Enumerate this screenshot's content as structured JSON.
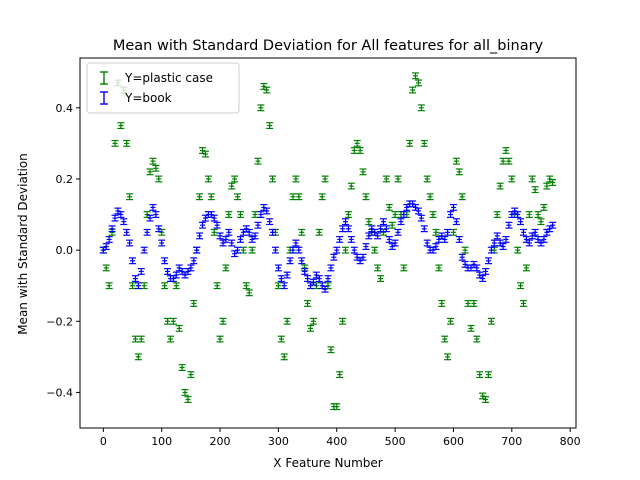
{
  "chart_data": {
    "type": "scatter",
    "title": "Mean with Standard Deviation for All features for all_binary",
    "xlabel": "X Feature Number",
    "ylabel": "Mean with Standard Deviation",
    "xlim": [
      -40,
      810
    ],
    "ylim": [
      -0.5,
      0.54
    ],
    "xticks": [
      0,
      100,
      200,
      300,
      400,
      500,
      600,
      700,
      800
    ],
    "yticks": [
      -0.4,
      -0.2,
      0.0,
      0.2,
      0.4
    ],
    "ytick_labels": [
      "−0.4",
      "−0.2",
      "0.0",
      "0.2",
      "0.4"
    ],
    "grid": false,
    "legend": "top-left",
    "error_bar_std": 0.008,
    "series": [
      {
        "name": "Y=plastic case",
        "color": "#008000",
        "points": [
          [
            0,
            0
          ],
          [
            5,
            -0.05
          ],
          [
            10,
            -0.1
          ],
          [
            15,
            0.05
          ],
          [
            20,
            0.3
          ],
          [
            25,
            0.47
          ],
          [
            30,
            0.35
          ],
          [
            35,
            0.45
          ],
          [
            40,
            0.3
          ],
          [
            45,
            0.15
          ],
          [
            50,
            -0.1
          ],
          [
            55,
            -0.25
          ],
          [
            60,
            -0.3
          ],
          [
            65,
            -0.25
          ],
          [
            70,
            -0.1
          ],
          [
            75,
            0.1
          ],
          [
            80,
            0.22
          ],
          [
            85,
            0.25
          ],
          [
            90,
            0.23
          ],
          [
            95,
            0.2
          ],
          [
            100,
            0.05
          ],
          [
            105,
            -0.1
          ],
          [
            110,
            -0.2
          ],
          [
            115,
            -0.25
          ],
          [
            120,
            -0.2
          ],
          [
            125,
            -0.1
          ],
          [
            130,
            -0.22
          ],
          [
            135,
            -0.33
          ],
          [
            140,
            -0.4
          ],
          [
            145,
            -0.42
          ],
          [
            150,
            -0.35
          ],
          [
            155,
            -0.15
          ],
          [
            160,
            0.0
          ],
          [
            165,
            0.15
          ],
          [
            170,
            0.28
          ],
          [
            175,
            0.27
          ],
          [
            180,
            0.2
          ],
          [
            185,
            0.15
          ],
          [
            190,
            0.05
          ],
          [
            195,
            -0.1
          ],
          [
            200,
            -0.25
          ],
          [
            205,
            -0.2
          ],
          [
            210,
            -0.05
          ],
          [
            215,
            0.1
          ],
          [
            220,
            0.18
          ],
          [
            225,
            0.2
          ],
          [
            230,
            0.15
          ],
          [
            235,
            0.1
          ],
          [
            240,
            0.0
          ],
          [
            245,
            -0.1
          ],
          [
            250,
            -0.12
          ],
          [
            255,
            0.0
          ],
          [
            260,
            0.1
          ],
          [
            265,
            0.25
          ],
          [
            270,
            0.4
          ],
          [
            275,
            0.46
          ],
          [
            280,
            0.45
          ],
          [
            285,
            0.35
          ],
          [
            290,
            0.2
          ],
          [
            295,
            0.05
          ],
          [
            300,
            -0.1
          ],
          [
            305,
            -0.25
          ],
          [
            310,
            -0.3
          ],
          [
            315,
            -0.2
          ],
          [
            320,
            0.0
          ],
          [
            325,
            0.15
          ],
          [
            330,
            0.2
          ],
          [
            335,
            0.15
          ],
          [
            340,
            0.05
          ],
          [
            345,
            -0.05
          ],
          [
            350,
            -0.15
          ],
          [
            355,
            -0.22
          ],
          [
            360,
            -0.2
          ],
          [
            365,
            -0.1
          ],
          [
            370,
            0.05
          ],
          [
            375,
            0.15
          ],
          [
            380,
            0.2
          ],
          [
            385,
            -0.1
          ],
          [
            390,
            -0.28
          ],
          [
            395,
            -0.44
          ],
          [
            400,
            -0.44
          ],
          [
            405,
            -0.35
          ],
          [
            410,
            -0.2
          ],
          [
            415,
            0.0
          ],
          [
            420,
            0.1
          ],
          [
            425,
            0.18
          ],
          [
            430,
            0.28
          ],
          [
            435,
            0.3
          ],
          [
            440,
            0.28
          ],
          [
            445,
            0.22
          ],
          [
            450,
            0.15
          ],
          [
            455,
            0.08
          ],
          [
            460,
            0.05
          ],
          [
            465,
            0.0
          ],
          [
            470,
            -0.05
          ],
          [
            475,
            -0.08
          ],
          [
            480,
            0.05
          ],
          [
            485,
            0.2
          ],
          [
            490,
            0.12
          ],
          [
            495,
            0.07
          ],
          [
            500,
            0.1
          ],
          [
            505,
            0.2
          ],
          [
            510,
            0.1
          ],
          [
            515,
            -0.05
          ],
          [
            520,
            0.1
          ],
          [
            525,
            0.3
          ],
          [
            530,
            0.45
          ],
          [
            535,
            0.49
          ],
          [
            540,
            0.47
          ],
          [
            545,
            0.4
          ],
          [
            550,
            0.3
          ],
          [
            555,
            0.2
          ],
          [
            560,
            0.15
          ],
          [
            565,
            0.1
          ],
          [
            570,
            0.05
          ],
          [
            575,
            -0.05
          ],
          [
            580,
            -0.15
          ],
          [
            585,
            -0.25
          ],
          [
            590,
            -0.3
          ],
          [
            595,
            -0.2
          ],
          [
            600,
            0.05
          ],
          [
            605,
            0.25
          ],
          [
            610,
            0.22
          ],
          [
            615,
            0.15
          ],
          [
            620,
            0.0
          ],
          [
            625,
            -0.15
          ],
          [
            630,
            -0.22
          ],
          [
            635,
            -0.15
          ],
          [
            640,
            -0.25
          ],
          [
            645,
            -0.35
          ],
          [
            650,
            -0.41
          ],
          [
            655,
            -0.42
          ],
          [
            660,
            -0.35
          ],
          [
            665,
            -0.2
          ],
          [
            670,
            0.0
          ],
          [
            675,
            0.1
          ],
          [
            680,
            0.18
          ],
          [
            685,
            0.25
          ],
          [
            690,
            0.28
          ],
          [
            695,
            0.25
          ],
          [
            700,
            0.2
          ],
          [
            705,
            0.1
          ],
          [
            710,
            0.0
          ],
          [
            715,
            -0.1
          ],
          [
            720,
            -0.15
          ],
          [
            725,
            -0.05
          ],
          [
            730,
            0.1
          ],
          [
            735,
            0.2
          ],
          [
            740,
            0.17
          ],
          [
            745,
            0.1
          ],
          [
            750,
            0.08
          ],
          [
            755,
            0.12
          ],
          [
            760,
            0.18
          ],
          [
            765,
            0.2
          ],
          [
            770,
            0.19
          ]
        ]
      },
      {
        "name": "Y=book",
        "color": "#0000ff",
        "points": [
          [
            0,
            0
          ],
          [
            5,
            0.01
          ],
          [
            10,
            0.03
          ],
          [
            15,
            0.06
          ],
          [
            20,
            0.09
          ],
          [
            25,
            0.11
          ],
          [
            30,
            0.1
          ],
          [
            35,
            0.08
          ],
          [
            40,
            0.05
          ],
          [
            45,
            0.02
          ],
          [
            50,
            -0.03
          ],
          [
            55,
            -0.08
          ],
          [
            60,
            -0.1
          ],
          [
            65,
            -0.06
          ],
          [
            70,
            0.0
          ],
          [
            75,
            0.05
          ],
          [
            80,
            0.09
          ],
          [
            85,
            0.12
          ],
          [
            90,
            0.1
          ],
          [
            95,
            0.06
          ],
          [
            100,
            0.02
          ],
          [
            105,
            -0.03
          ],
          [
            110,
            -0.06
          ],
          [
            115,
            -0.08
          ],
          [
            120,
            -0.08
          ],
          [
            125,
            -0.07
          ],
          [
            130,
            -0.05
          ],
          [
            135,
            -0.06
          ],
          [
            140,
            -0.07
          ],
          [
            145,
            -0.06
          ],
          [
            150,
            -0.05
          ],
          [
            155,
            -0.03
          ],
          [
            160,
            0.0
          ],
          [
            165,
            0.04
          ],
          [
            170,
            0.07
          ],
          [
            175,
            0.09
          ],
          [
            180,
            0.1
          ],
          [
            185,
            0.1
          ],
          [
            190,
            0.09
          ],
          [
            195,
            0.07
          ],
          [
            200,
            0.04
          ],
          [
            205,
            0.02
          ],
          [
            210,
            0.03
          ],
          [
            215,
            0.05
          ],
          [
            220,
            0.02
          ],
          [
            225,
            -0.01
          ],
          [
            230,
            0.0
          ],
          [
            235,
            0.03
          ],
          [
            240,
            0.05
          ],
          [
            245,
            0.06
          ],
          [
            250,
            0.05
          ],
          [
            255,
            0.03
          ],
          [
            260,
            0.04
          ],
          [
            265,
            0.07
          ],
          [
            270,
            0.1
          ],
          [
            275,
            0.12
          ],
          [
            280,
            0.11
          ],
          [
            285,
            0.08
          ],
          [
            290,
            0.05
          ],
          [
            295,
            0.0
          ],
          [
            300,
            -0.05
          ],
          [
            305,
            -0.08
          ],
          [
            310,
            -0.1
          ],
          [
            315,
            -0.07
          ],
          [
            320,
            -0.03
          ],
          [
            325,
            0.0
          ],
          [
            330,
            0.02
          ],
          [
            335,
            0.0
          ],
          [
            340,
            -0.03
          ],
          [
            345,
            -0.06
          ],
          [
            350,
            -0.08
          ],
          [
            355,
            -0.1
          ],
          [
            360,
            -0.09
          ],
          [
            365,
            -0.07
          ],
          [
            370,
            -0.08
          ],
          [
            375,
            -0.1
          ],
          [
            380,
            -0.11
          ],
          [
            385,
            -0.08
          ],
          [
            390,
            -0.05
          ],
          [
            395,
            -0.02
          ],
          [
            400,
            0.0
          ],
          [
            405,
            0.03
          ],
          [
            410,
            0.06
          ],
          [
            415,
            0.08
          ],
          [
            420,
            0.06
          ],
          [
            425,
            0.03
          ],
          [
            430,
            0.0
          ],
          [
            435,
            -0.02
          ],
          [
            440,
            -0.03
          ],
          [
            445,
            -0.02
          ],
          [
            450,
            0.01
          ],
          [
            455,
            0.04
          ],
          [
            460,
            0.06
          ],
          [
            465,
            0.05
          ],
          [
            470,
            0.04
          ],
          [
            475,
            0.06
          ],
          [
            480,
            0.08
          ],
          [
            485,
            0.06
          ],
          [
            490,
            0.03
          ],
          [
            495,
            0.01
          ],
          [
            500,
            0.02
          ],
          [
            505,
            0.05
          ],
          [
            510,
            0.08
          ],
          [
            515,
            0.1
          ],
          [
            520,
            0.12
          ],
          [
            525,
            0.13
          ],
          [
            530,
            0.13
          ],
          [
            535,
            0.12
          ],
          [
            540,
            0.11
          ],
          [
            545,
            0.09
          ],
          [
            550,
            0.06
          ],
          [
            555,
            0.02
          ],
          [
            560,
            0.0
          ],
          [
            565,
            0.0
          ],
          [
            570,
            0.01
          ],
          [
            575,
            0.03
          ],
          [
            580,
            0.04
          ],
          [
            585,
            0.03
          ],
          [
            590,
            0.05
          ],
          [
            595,
            0.1
          ],
          [
            600,
            0.12
          ],
          [
            605,
            0.08
          ],
          [
            610,
            0.03
          ],
          [
            615,
            -0.02
          ],
          [
            620,
            -0.04
          ],
          [
            625,
            -0.05
          ],
          [
            630,
            -0.05
          ],
          [
            635,
            -0.04
          ],
          [
            640,
            -0.05
          ],
          [
            645,
            -0.07
          ],
          [
            650,
            -0.08
          ],
          [
            655,
            -0.06
          ],
          [
            660,
            -0.03
          ],
          [
            665,
            0.0
          ],
          [
            670,
            0.02
          ],
          [
            675,
            0.04
          ],
          [
            680,
            0.02
          ],
          [
            685,
            0.01
          ],
          [
            690,
            0.03
          ],
          [
            695,
            0.07
          ],
          [
            700,
            0.1
          ],
          [
            705,
            0.11
          ],
          [
            710,
            0.1
          ],
          [
            715,
            0.08
          ],
          [
            720,
            0.05
          ],
          [
            725,
            0.03
          ],
          [
            730,
            0.02
          ],
          [
            735,
            0.04
          ],
          [
            740,
            0.05
          ],
          [
            745,
            0.03
          ],
          [
            750,
            0.02
          ],
          [
            755,
            0.03
          ],
          [
            760,
            0.05
          ],
          [
            765,
            0.06
          ],
          [
            770,
            0.07
          ]
        ]
      }
    ]
  }
}
